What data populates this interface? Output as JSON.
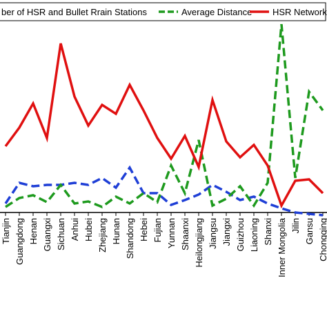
{
  "chart_data": {
    "type": "line",
    "categories": [
      "Tianjin",
      "Guangdong",
      "Henan",
      "Guangxi",
      "Sichuan",
      "Anhui",
      "Hubei",
      "Zhejiang",
      "Hunan",
      "Shandong",
      "Hebei",
      "Fujian",
      "Yunnan",
      "Shaanxi",
      "Heilongjiang",
      "Jiangsu",
      "Jiangxi",
      "Guizhou",
      "Liaoning",
      "Shanxi",
      "Inner Mongolia",
      "Jilin",
      "Gansu",
      "Chongqing"
    ],
    "series": [
      {
        "name": "ber of HSR and Bullet Rrain Stations",
        "color": "#1f3fd6",
        "values": [
          25,
          55,
          50,
          52,
          52,
          55,
          52,
          62,
          48,
          77,
          40,
          40,
          23,
          30,
          38,
          52,
          42,
          30,
          35,
          25,
          18,
          12,
          10,
          8
        ]
      },
      {
        "name": "Average Distance",
        "color": "#1e9a1e",
        "values": [
          20,
          33,
          37,
          27,
          52,
          25,
          28,
          20,
          35,
          25,
          40,
          27,
          80,
          40,
          117,
          22,
          32,
          50,
          22,
          55,
          285,
          62,
          187,
          160
        ]
      },
      {
        "name": "HSR Network",
        "color": "#e01010",
        "values": [
          108,
          135,
          170,
          120,
          257,
          180,
          138,
          168,
          155,
          197,
          160,
          120,
          90,
          123,
          78,
          175,
          115,
          92,
          110,
          80,
          22,
          58,
          60,
          40
        ]
      }
    ],
    "ylim": [
      0,
      320
    ]
  }
}
